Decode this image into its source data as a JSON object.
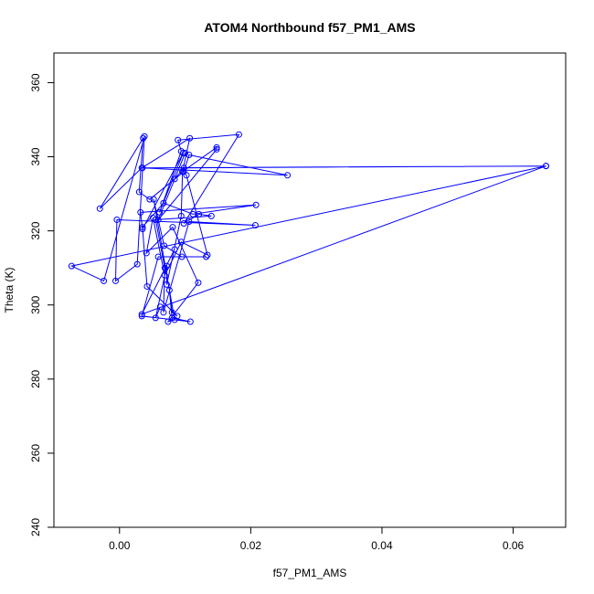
{
  "chart_data": {
    "type": "line",
    "title": "ATOM4 Northbound f57_PM1_AMS",
    "xlabel": "f57_PM1_AMS",
    "ylabel": "Theta (K)",
    "xlim": [
      -0.01,
      0.068
    ],
    "ylim": [
      240,
      368
    ],
    "x_ticks": [
      0.0,
      0.02,
      0.04,
      0.06
    ],
    "x_tick_labels": [
      "0.00",
      "0.02",
      "0.04",
      "0.06"
    ],
    "y_ticks": [
      240,
      260,
      280,
      300,
      320,
      340,
      360
    ],
    "y_tick_labels": [
      "240",
      "260",
      "280",
      "300",
      "320",
      "340",
      "360"
    ],
    "grid": false,
    "series": [
      {
        "color": "#0000ff",
        "marker": "open-circle",
        "x": [
          0.0062,
          0.0055,
          0.0072,
          0.0072,
          0.0094,
          0.0096,
          0.0107,
          0.0034,
          -0.003,
          0.0036,
          0.003,
          0.0046,
          0.0098,
          0.0106,
          0.0256,
          0.0035,
          0.065,
          0.0098,
          0.0084,
          0.01,
          0.0059,
          0.0148,
          0.0148,
          0.0096,
          0.0102,
          0.0134,
          0.0094,
          0.0069,
          0.0051,
          0.0041,
          0.0081,
          0.012,
          0.0074,
          0.0084,
          0.0052,
          0.0068,
          0.0095,
          0.0132,
          0.0059,
          0.0034,
          0.0108,
          0.008,
          0.0076,
          0.008,
          0.0088,
          0.0042,
          0.0035,
          0.0067,
          0.0112,
          0.0208,
          0.0032,
          0.0035,
          0.0097,
          0.0061,
          0.0094,
          0.0089,
          0.0182,
          0.0098,
          0.0121,
          0.014,
          0.0055,
          0.0069,
          0.0067,
          0.0106,
          0.0207,
          -0.0004,
          -0.0006,
          0.0027,
          0.0038,
          -0.0024,
          -0.0073,
          0.065,
          0.0034,
          0.0084
        ],
        "y": [
          299.5,
          296.5,
          310.5,
          305.5,
          324.0,
          336.0,
          345.0,
          337.0,
          326.0,
          345.0,
          330.5,
          328.5,
          336.0,
          340.5,
          335.0,
          337.0,
          337.5,
          337.0,
          334.0,
          341.0,
          323.0,
          342.0,
          342.5,
          336.0,
          335.0,
          313.5,
          317.0,
          308.0,
          323.5,
          314.0,
          321.0,
          306.0,
          295.5,
          296.0,
          328.5,
          316.0,
          313.0,
          313.0,
          313.0,
          297.0,
          295.5,
          296.5,
          304.0,
          298.0,
          297.0,
          305.0,
          321.0,
          327.5,
          324.5,
          327.0,
          325.0,
          320.5,
          341.0,
          325.0,
          341.5,
          344.5,
          346.0,
          322.0,
          324.5,
          324.0,
          323.0,
          310.0,
          298.0,
          322.5,
          321.5,
          323.0,
          306.5,
          311.0,
          345.5,
          306.5,
          310.5,
          337.5,
          297.5,
          315.0
        ]
      }
    ]
  }
}
